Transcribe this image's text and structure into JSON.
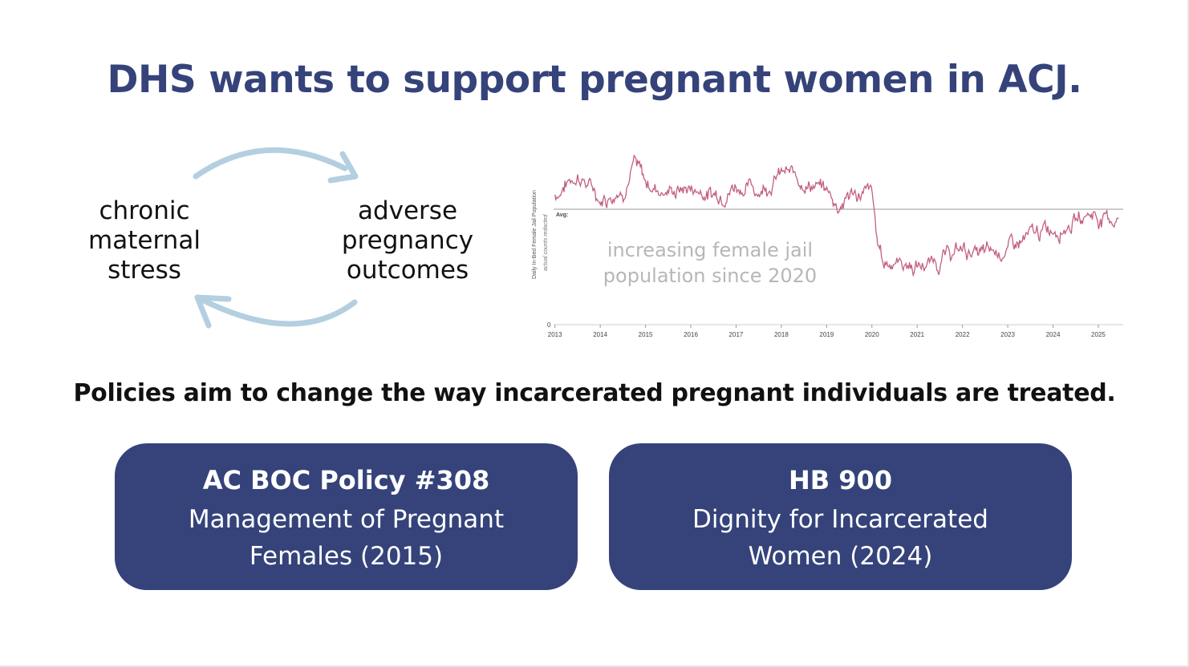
{
  "title": "DHS wants to support pregnant women in ACJ.",
  "cycle": {
    "left_label": "chronic\nmaternal\nstress",
    "right_label": "adverse\npregnancy\noutcomes",
    "arrow_color": "#b3cfe0"
  },
  "chart_data": {
    "type": "line",
    "ylabel": "Daily In-Bed Female Jail Population",
    "ylabel_note": "actual counts redacted",
    "avg_label": "Avg:",
    "y_zero_label": "0",
    "x_ticks": [
      "2013",
      "2014",
      "2015",
      "2016",
      "2017",
      "2018",
      "2019",
      "2020",
      "2021",
      "2022",
      "2023",
      "2024",
      "2025"
    ],
    "annotation": "increasing female jail\npopulation since 2020",
    "line_color": "#c2607d",
    "x": [
      2013.0,
      2013.5,
      2014.0,
      2014.5,
      2014.75,
      2015.0,
      2015.5,
      2016.0,
      2016.5,
      2017.0,
      2017.5,
      2018.0,
      2018.5,
      2019.0,
      2019.25,
      2019.5,
      2019.75,
      2020.0,
      2020.1,
      2020.25,
      2020.5,
      2021.0,
      2021.5,
      2022.0,
      2022.5,
      2023.0,
      2023.5,
      2024.0,
      2024.5,
      2024.85,
      2025.0,
      2025.25,
      2025.45
    ],
    "y": [
      0.72,
      0.84,
      0.7,
      0.76,
      0.9,
      0.78,
      0.74,
      0.76,
      0.72,
      0.78,
      0.75,
      0.84,
      0.8,
      0.74,
      0.66,
      0.72,
      0.73,
      0.72,
      0.48,
      0.34,
      0.36,
      0.32,
      0.36,
      0.42,
      0.38,
      0.42,
      0.48,
      0.54,
      0.58,
      0.62,
      0.6,
      0.58,
      0.6
    ],
    "avg": 0.64,
    "ylim": [
      0,
      1
    ],
    "xlim": [
      2012.97,
      2025.55
    ]
  },
  "policies": {
    "heading": "Policies aim to change the way incarcerated pregnant individuals are treated.",
    "cards": [
      {
        "title": "AC BOC Policy #308",
        "subtitle": "Management of Pregnant Females (2015)"
      },
      {
        "title": "HB 900",
        "subtitle": "Dignity for Incarcerated Women (2024)"
      }
    ],
    "card_color": "#35437a"
  }
}
